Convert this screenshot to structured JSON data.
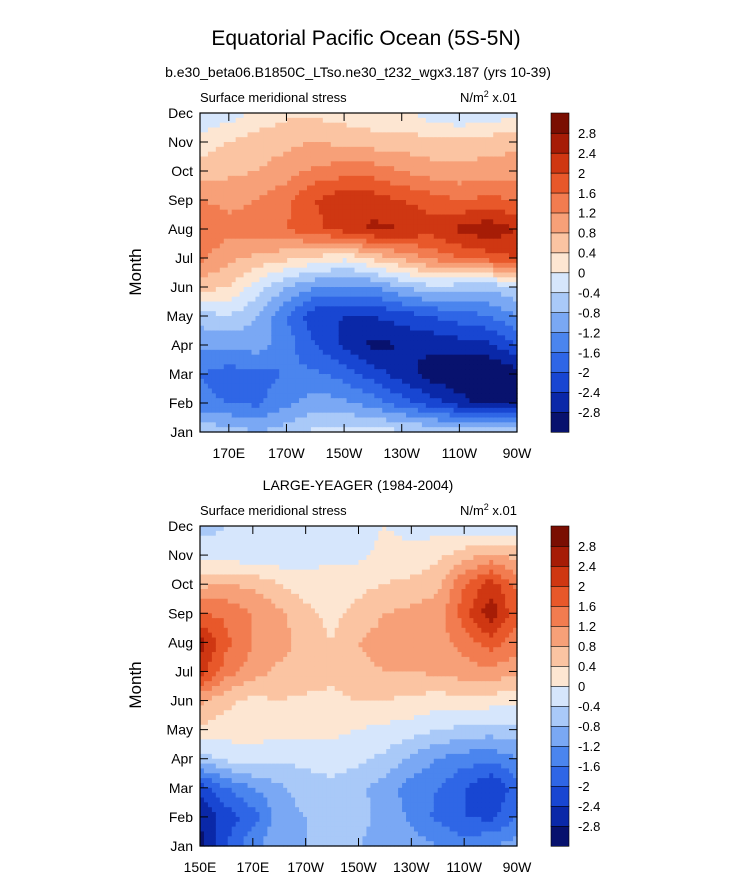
{
  "figure": {
    "title": "Equatorial Pacific Ocean (5S-5N)"
  },
  "colors": {
    "levels": [
      -2.8,
      -2.4,
      -2.0,
      -1.6,
      -1.2,
      -0.8,
      -0.4,
      0.0,
      0.4,
      0.8,
      1.2,
      1.6,
      2.0,
      2.4,
      2.8
    ],
    "bins": [
      "#08126e",
      "#0a28a8",
      "#1846d2",
      "#2f66e6",
      "#4b85ee",
      "#7aa8f4",
      "#a9c9f8",
      "#d6e6fc",
      "#fde6d2",
      "#fbc4a2",
      "#f7a078",
      "#f27c50",
      "#e8582a",
      "#cf3712",
      "#a61c06",
      "#7a0e02"
    ]
  },
  "chart_data": [
    {
      "type": "heatmap",
      "title": "b.e30_beta06.B1850C_LTso.ne30_t232_wgx3.187 (yrs 10-39)",
      "left_label": "Surface meridional stress",
      "units_prefix": "N/m",
      "units_sup": "2",
      "units_suffix": " x.01",
      "ylabel": "Month",
      "y_ticks": [
        "Jan",
        "Feb",
        "Mar",
        "Apr",
        "May",
        "Jun",
        "Jul",
        "Aug",
        "Sep",
        "Oct",
        "Nov",
        "Dec"
      ],
      "x_ticks": [
        "170E",
        "170W",
        "150W",
        "130W",
        "110W",
        "90W"
      ],
      "x_tick_lon": [
        170,
        190,
        210,
        230,
        250,
        270
      ],
      "xlim_lon": [
        160,
        270
      ],
      "colorbar_labels": [
        "-2.8",
        "-2.4",
        "-2",
        "-1.6",
        "-1.2",
        "-0.8",
        "-0.4",
        "0",
        "0.4",
        "0.8",
        "1.2",
        "1.6",
        "2",
        "2.4",
        "2.8"
      ],
      "grid_lon": [
        160,
        170,
        180,
        190,
        200,
        210,
        220,
        230,
        240,
        250,
        260,
        270
      ],
      "values": [
        [
          -0.5,
          -0.6,
          -0.8,
          -0.6,
          -0.3,
          -0.2,
          -0.2,
          -0.3,
          -0.4,
          -0.4,
          -0.3,
          -0.2
        ],
        [
          -1.5,
          -1.6,
          -1.7,
          -1.3,
          -1.0,
          -1.1,
          -1.4,
          -1.8,
          -2.2,
          -2.6,
          -3.0,
          -2.8
        ],
        [
          -1.6,
          -1.8,
          -1.7,
          -1.6,
          -1.5,
          -1.8,
          -2.2,
          -2.6,
          -3.0,
          -3.2,
          -3.3,
          -3.0
        ],
        [
          -1.1,
          -1.1,
          -1.0,
          -1.4,
          -2.0,
          -2.5,
          -2.9,
          -2.8,
          -2.7,
          -2.6,
          -2.5,
          -2.0
        ],
        [
          -0.6,
          -0.4,
          -0.8,
          -1.6,
          -2.3,
          -2.4,
          -2.4,
          -2.2,
          -2.0,
          -1.8,
          -1.6,
          -1.2
        ],
        [
          0.6,
          0.4,
          -0.2,
          -0.8,
          -1.2,
          -1.3,
          -1.2,
          -0.8,
          -0.5,
          -0.6,
          -0.7,
          -0.4
        ],
        [
          1.3,
          0.9,
          0.7,
          0.5,
          0.3,
          0.1,
          0.5,
          0.9,
          1.3,
          1.6,
          1.8,
          2.0
        ],
        [
          1.6,
          1.3,
          1.4,
          1.6,
          1.9,
          2.2,
          2.5,
          2.4,
          2.2,
          2.5,
          2.7,
          2.4
        ],
        [
          1.2,
          1.1,
          1.2,
          1.5,
          2.0,
          2.3,
          2.2,
          2.0,
          1.8,
          1.6,
          1.7,
          1.6
        ],
        [
          0.6,
          0.7,
          0.8,
          1.0,
          1.3,
          1.4,
          1.4,
          1.2,
          1.0,
          0.9,
          1.0,
          1.0
        ],
        [
          0.2,
          0.4,
          0.6,
          0.7,
          0.8,
          0.7,
          0.6,
          0.6,
          0.5,
          0.5,
          0.6,
          0.7
        ],
        [
          -0.4,
          -0.2,
          0.1,
          0.3,
          0.3,
          0.2,
          0.1,
          0.1,
          -0.2,
          -0.4,
          -0.3,
          -0.1
        ]
      ]
    },
    {
      "type": "heatmap",
      "title": "LARGE-YEAGER (1984-2004)",
      "left_label": "Surface meridional stress",
      "units_prefix": "N/m",
      "units_sup": "2",
      "units_suffix": " x.01",
      "ylabel": "Month",
      "y_ticks": [
        "Jan",
        "Feb",
        "Mar",
        "Apr",
        "May",
        "Jun",
        "Jul",
        "Aug",
        "Sep",
        "Oct",
        "Nov",
        "Dec"
      ],
      "x_ticks": [
        "150E",
        "170E",
        "170W",
        "150W",
        "130W",
        "110W",
        "90W"
      ],
      "x_tick_lon": [
        150,
        170,
        190,
        210,
        230,
        250,
        270
      ],
      "xlim_lon": [
        150,
        270
      ],
      "colorbar_labels": [
        "-2.8",
        "-2.4",
        "-2",
        "-1.6",
        "-1.2",
        "-0.8",
        "-0.4",
        "0",
        "0.4",
        "0.8",
        "1.2",
        "1.6",
        "2",
        "2.4",
        "2.8"
      ],
      "grid_lon": [
        150,
        160,
        170,
        180,
        190,
        200,
        210,
        220,
        230,
        240,
        250,
        260,
        270
      ],
      "values": [
        [
          -2.9,
          -2.0,
          -1.3,
          -0.9,
          -0.8,
          -0.7,
          -0.8,
          -0.9,
          -1.0,
          -1.2,
          -1.4,
          -1.2,
          -1.0
        ],
        [
          -2.8,
          -2.2,
          -1.8,
          -1.0,
          -0.8,
          -0.6,
          -0.7,
          -0.9,
          -1.3,
          -1.7,
          -2.0,
          -2.1,
          -1.6
        ],
        [
          -2.2,
          -1.6,
          -1.2,
          -0.9,
          -0.6,
          -0.5,
          -0.7,
          -1.0,
          -1.4,
          -1.6,
          -2.0,
          -2.4,
          -1.8
        ],
        [
          -0.6,
          -0.3,
          -0.2,
          -0.3,
          -0.3,
          -0.2,
          -0.3,
          -0.5,
          -0.9,
          -1.2,
          -1.4,
          -1.5,
          -1.2
        ],
        [
          0.3,
          0.2,
          0.2,
          0.1,
          0.1,
          0.1,
          0.0,
          -0.1,
          -0.2,
          -0.4,
          -0.5,
          -0.6,
          -0.5
        ],
        [
          0.9,
          0.5,
          0.3,
          0.4,
          0.3,
          0.3,
          0.4,
          0.4,
          0.3,
          0.2,
          0.3,
          0.2,
          0.1
        ],
        [
          2.2,
          1.4,
          1.0,
          0.7,
          0.7,
          0.5,
          0.7,
          0.8,
          0.8,
          0.9,
          1.0,
          1.1,
          0.9
        ],
        [
          2.6,
          1.7,
          1.2,
          1.0,
          0.6,
          0.4,
          0.8,
          1.0,
          1.2,
          1.0,
          1.4,
          1.8,
          1.4
        ],
        [
          1.6,
          1.5,
          1.2,
          0.9,
          0.5,
          0.3,
          0.5,
          0.8,
          0.9,
          1.0,
          1.8,
          2.7,
          1.7
        ],
        [
          0.7,
          0.8,
          0.7,
          0.4,
          0.2,
          0.2,
          0.3,
          0.4,
          0.5,
          0.7,
          1.6,
          2.2,
          1.5
        ],
        [
          -0.1,
          -0.2,
          -0.3,
          -0.3,
          -0.2,
          -0.1,
          -0.1,
          0.1,
          0.1,
          0.3,
          0.6,
          0.9,
          0.6
        ],
        [
          -0.6,
          -0.4,
          -0.2,
          -0.3,
          -0.3,
          -0.2,
          -0.1,
          0.0,
          -0.1,
          -0.2,
          -0.3,
          -0.4,
          -0.2
        ]
      ]
    }
  ]
}
